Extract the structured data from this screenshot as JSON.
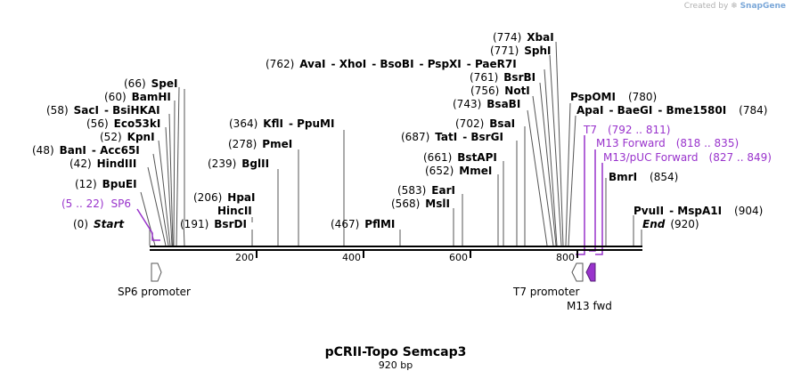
{
  "watermark": {
    "prefix": "Created by",
    "brand": "SnapGene"
  },
  "map": {
    "title": "pCRII-Topo Semcap3",
    "length_label": "920 bp",
    "length": 920,
    "colors": {
      "line": "#000000",
      "primer": "#9933cc",
      "feature_fill": "#ffffff",
      "m13_fill": "#9933cc"
    }
  },
  "ruler": {
    "ticks": [
      "200",
      "400",
      "600",
      "800"
    ]
  },
  "sites": [
    {
      "pos": "(0)",
      "name": "Start",
      "italic": true
    },
    {
      "pos": "(920)",
      "name": "End",
      "italic": true
    },
    {
      "pos": "(12)",
      "name": "BpuEI"
    },
    {
      "pos": "(42)",
      "name": "HindIII"
    },
    {
      "pos": "(48)",
      "name": "BanI",
      "name2": "Acc65I"
    },
    {
      "pos": "(52)",
      "name": "KpnI"
    },
    {
      "pos": "(56)",
      "name": "Eco53kI"
    },
    {
      "pos": "(58)",
      "name": "SacI",
      "name2": "BsiHKAI"
    },
    {
      "pos": "(60)",
      "name": "BamHI"
    },
    {
      "pos": "(66)",
      "name": "SpeI"
    },
    {
      "pos": "(191)",
      "name": "BsrDI"
    },
    {
      "pos": "",
      "name": "HincII"
    },
    {
      "pos": "(206)",
      "name": "HpaI"
    },
    {
      "pos": "(239)",
      "name": "BglII"
    },
    {
      "pos": "(278)",
      "name": "PmeI"
    },
    {
      "pos": "(364)",
      "name": "KflI",
      "name2": "PpuMI"
    },
    {
      "pos": "(467)",
      "name": "PflMI"
    },
    {
      "pos": "(568)",
      "name": "MslI"
    },
    {
      "pos": "(583)",
      "name": "EarI"
    },
    {
      "pos": "(652)",
      "name": "MmeI"
    },
    {
      "pos": "(661)",
      "name": "BstAPI"
    },
    {
      "pos": "(687)",
      "name": "TatI",
      "name2": "BsrGI"
    },
    {
      "pos": "(702)",
      "name": "BsaI"
    },
    {
      "pos": "(743)",
      "name": "BsaBI"
    },
    {
      "pos": "(756)",
      "name": "NotI"
    },
    {
      "pos": "(761)",
      "name": "BsrBI"
    },
    {
      "pos": "(762)",
      "name": "AvaI",
      "name2": "XhoI",
      "name3": "BsoBI",
      "name4": "PspXI",
      "name5": "PaeR7I"
    },
    {
      "pos": "(771)",
      "name": "SphI"
    },
    {
      "pos": "(774)",
      "name": "XbaI"
    },
    {
      "pos": "(780)",
      "name": "PspOMI"
    },
    {
      "pos": "(784)",
      "name": "ApaI",
      "name2": "BaeGI",
      "name3": "Bme1580I"
    },
    {
      "pos": "(854)",
      "name": "BmrI"
    },
    {
      "pos": "(904)",
      "name": "PvuII",
      "name2": "MspA1I"
    }
  ],
  "primers": [
    {
      "name": "SP6",
      "range": "(5 .. 22)"
    },
    {
      "name": "T7",
      "range": "(792 .. 811)"
    },
    {
      "name": "M13 Forward",
      "range": "(818 .. 835)"
    },
    {
      "name": "M13/pUC Forward",
      "range": "(827 .. 849)"
    }
  ],
  "features": [
    {
      "name": "SP6 promoter",
      "direction": "forward"
    },
    {
      "name": "T7 promoter",
      "direction": "reverse"
    },
    {
      "name": "M13 fwd",
      "direction": "reverse"
    }
  ]
}
